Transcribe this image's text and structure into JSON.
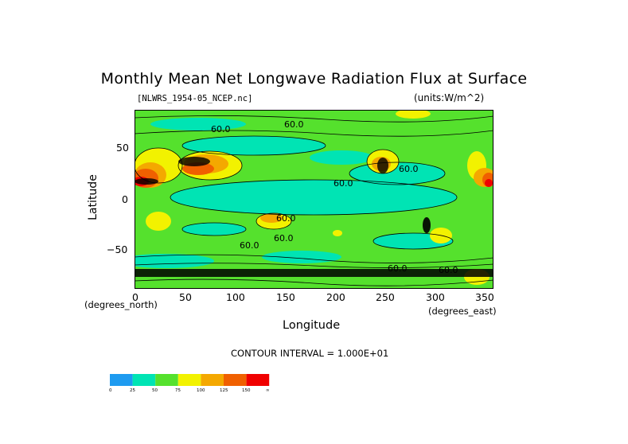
{
  "chart_data": {
    "type": "heatmap",
    "title": "Monthly Mean Net Longwave Radiation Flux at Surface",
    "subtitle_left": "[NLWRS_1954-05_NCEP.nc]",
    "subtitle_right": "(units:W/m^2)",
    "xlabel": "Longitude",
    "ylabel": "Latitude",
    "x_unit": "(degrees_north)",
    "x_unit_right": "(degrees_east)",
    "xlim": [
      0,
      360
    ],
    "ylim": [
      -90,
      90
    ],
    "x_ticks": [
      "0",
      "50",
      "100",
      "150",
      "200",
      "250",
      "300",
      "350"
    ],
    "y_ticks": [
      "50",
      "0",
      "−50"
    ],
    "contour_interval_text": "CONTOUR INTERVAL = 1.000E+01",
    "contour_labels": [
      "60.0",
      "60.0",
      "60.0",
      "60.0",
      "60.0",
      "60.0",
      "60.0",
      "60.0",
      "60.0"
    ],
    "colorbar": {
      "labels": [
        "0",
        "25",
        "50",
        "75",
        "100",
        "125",
        "150",
        "∞"
      ],
      "colors": [
        "#1e9bf0",
        "#00e4b4",
        "#55e12d",
        "#f2f200",
        "#f4a800",
        "#f06000",
        "#f00000"
      ]
    }
  }
}
